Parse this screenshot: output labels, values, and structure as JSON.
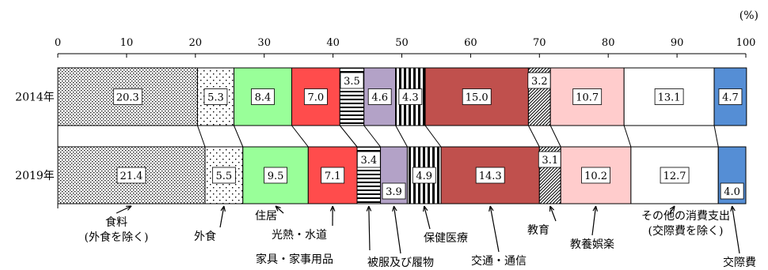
{
  "chart_data": {
    "type": "bar",
    "orientation": "horizontal",
    "stacked": true,
    "unit_label": "(%)",
    "xlim": [
      0,
      100
    ],
    "xticks": [
      "0",
      "10",
      "20",
      "30",
      "40",
      "50",
      "60",
      "70",
      "80",
      "90",
      "100"
    ],
    "categories": [
      "2014年",
      "2019年"
    ],
    "series": [
      {
        "name": "食料\n(外食を除く)",
        "values": [
          20.3,
          21.4
        ],
        "labels": [
          "20.3",
          "21.4"
        ],
        "color": "#e8e8e8",
        "pattern": "dots-dense"
      },
      {
        "name": "外食",
        "values": [
          5.3,
          5.5
        ],
        "labels": [
          "5.3",
          "5.5"
        ],
        "color": "#ffffff",
        "pattern": "dots-sparse"
      },
      {
        "name": "住居",
        "values": [
          8.4,
          9.5
        ],
        "labels": [
          "8.4",
          "9.5"
        ],
        "color": "#99ff99",
        "pattern": "solid"
      },
      {
        "name": "光熱・水道",
        "values": [
          7.0,
          7.1
        ],
        "labels": [
          "7.0",
          "7.1"
        ],
        "color": "#ff4c4c",
        "pattern": "solid"
      },
      {
        "name": "家具・家事用品",
        "values": [
          3.5,
          3.4
        ],
        "labels": [
          "3.5",
          "3.4"
        ],
        "color": "#ffffff",
        "pattern": "hlines"
      },
      {
        "name": "被服及び履物",
        "values": [
          4.6,
          3.9
        ],
        "labels": [
          "4.6",
          "3.9"
        ],
        "color": "#b3a2c7",
        "pattern": "solid"
      },
      {
        "name": "保健医療",
        "values": [
          4.3,
          4.9
        ],
        "labels": [
          "4.3",
          "4.9"
        ],
        "color": "#ffffff",
        "pattern": "vlines"
      },
      {
        "name": "交通・通信",
        "values": [
          15.0,
          14.3
        ],
        "labels": [
          "15.0",
          "14.3"
        ],
        "color": "#c0504d",
        "pattern": "solid"
      },
      {
        "name": "教育",
        "values": [
          3.2,
          3.1
        ],
        "labels": [
          "3.2",
          "3.1"
        ],
        "color": "#ffffff",
        "pattern": "diag"
      },
      {
        "name": "教養娯楽",
        "values": [
          10.7,
          10.2
        ],
        "labels": [
          "10.7",
          "10.2"
        ],
        "color": "#ffcccc",
        "pattern": "solid"
      },
      {
        "name": "その他の消費支出\n(交際費を除く)",
        "values": [
          13.1,
          12.7
        ],
        "labels": [
          "13.1",
          "12.7"
        ],
        "color": "#ffffff",
        "pattern": "solid"
      },
      {
        "name": "交際費",
        "values": [
          4.7,
          4.0
        ],
        "labels": [
          "4.7",
          "4.0"
        ],
        "color": "#558ed5",
        "pattern": "solid"
      }
    ]
  }
}
